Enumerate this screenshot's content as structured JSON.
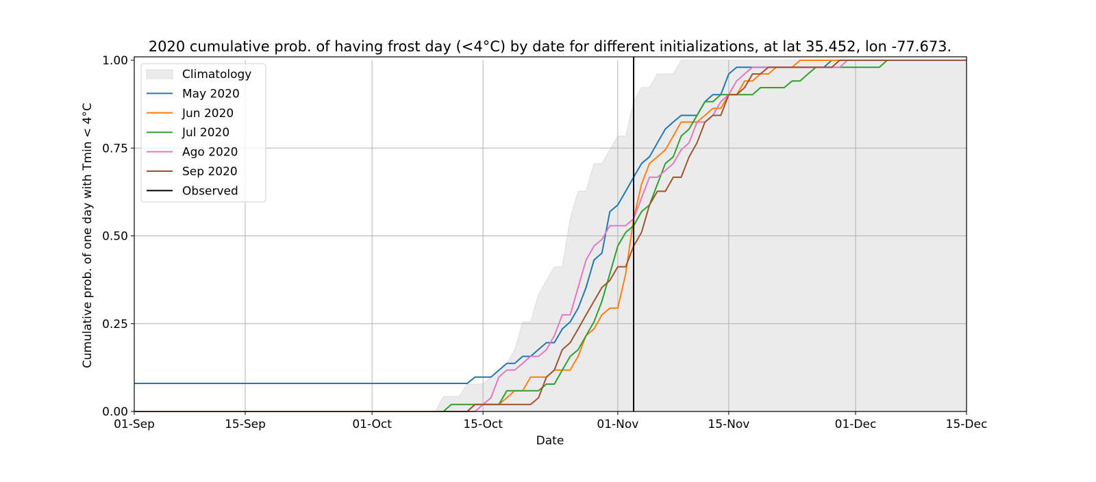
{
  "chart_data": {
    "type": "line",
    "title": "2020 cumulative prob. of having frost day (<4°C) by date for different initializations, at lat 35.452, lon -77.673.",
    "xlabel": "Date",
    "ylabel": "Cumulative prob. of one day with Tmin < 4°C",
    "xlim": [
      "2020-09-01",
      "2020-12-15"
    ],
    "ylim": [
      0,
      1
    ],
    "x_ticks": [
      {
        "date": "2020-09-01",
        "label": "01-Sep"
      },
      {
        "date": "2020-09-15",
        "label": "15-Sep"
      },
      {
        "date": "2020-10-01",
        "label": "01-Oct"
      },
      {
        "date": "2020-10-15",
        "label": "15-Oct"
      },
      {
        "date": "2020-11-01",
        "label": "01-Nov"
      },
      {
        "date": "2020-11-15",
        "label": "15-Nov"
      },
      {
        "date": "2020-12-01",
        "label": "01-Dec"
      },
      {
        "date": "2020-12-15",
        "label": "15-Dec"
      }
    ],
    "y_ticks": [
      {
        "value": 0,
        "label": "0.00"
      },
      {
        "value": 0.25,
        "label": "0.25"
      },
      {
        "value": 0.5,
        "label": "0.50"
      },
      {
        "value": 0.75,
        "label": "0.75"
      },
      {
        "value": 1,
        "label": "1.00"
      }
    ],
    "grid": true,
    "legend_placement": "top-left",
    "climatology": {
      "name": "Climatology",
      "color": "#ebebeb",
      "points": [
        [
          "2020-09-01",
          0
        ],
        [
          "2020-10-09",
          0
        ],
        [
          "2020-10-10",
          0.043
        ],
        [
          "2020-10-12",
          0.043
        ],
        [
          "2020-10-13",
          0.078
        ],
        [
          "2020-10-15",
          0.078
        ],
        [
          "2020-10-16",
          0.098
        ],
        [
          "2020-10-18",
          0.137
        ],
        [
          "2020-10-19",
          0.176
        ],
        [
          "2020-10-20",
          0.255
        ],
        [
          "2020-10-21",
          0.255
        ],
        [
          "2020-10-22",
          0.333
        ],
        [
          "2020-10-23",
          0.373
        ],
        [
          "2020-10-24",
          0.412
        ],
        [
          "2020-10-25",
          0.412
        ],
        [
          "2020-10-26",
          0.549
        ],
        [
          "2020-10-27",
          0.627
        ],
        [
          "2020-10-28",
          0.627
        ],
        [
          "2020-10-29",
          0.706
        ],
        [
          "2020-10-30",
          0.706
        ],
        [
          "2020-10-31",
          0.745
        ],
        [
          "2020-11-01",
          0.784
        ],
        [
          "2020-11-02",
          0.784
        ],
        [
          "2020-11-03",
          0.882
        ],
        [
          "2020-11-04",
          0.922
        ],
        [
          "2020-11-05",
          0.922
        ],
        [
          "2020-11-06",
          0.961
        ],
        [
          "2020-11-08",
          0.961
        ],
        [
          "2020-11-09",
          1
        ],
        [
          "2020-12-15",
          1
        ]
      ]
    },
    "series": [
      {
        "name": "May 2020",
        "color": "#1f77b4",
        "points": [
          [
            "2020-09-01",
            0.08
          ],
          [
            "2020-10-13",
            0.08
          ],
          [
            "2020-10-14",
            0.098
          ],
          [
            "2020-10-16",
            0.098
          ],
          [
            "2020-10-18",
            0.137
          ],
          [
            "2020-10-19",
            0.137
          ],
          [
            "2020-10-20",
            0.157
          ],
          [
            "2020-10-21",
            0.157
          ],
          [
            "2020-10-23",
            0.196
          ],
          [
            "2020-10-24",
            0.196
          ],
          [
            "2020-10-25",
            0.235
          ],
          [
            "2020-10-26",
            0.255
          ],
          [
            "2020-10-27",
            0.294
          ],
          [
            "2020-10-28",
            0.353
          ],
          [
            "2020-10-29",
            0.431
          ],
          [
            "2020-10-30",
            0.451
          ],
          [
            "2020-10-31",
            0.569
          ],
          [
            "2020-11-01",
            0.588
          ],
          [
            "2020-11-02",
            0.627
          ],
          [
            "2020-11-03",
            0.667
          ],
          [
            "2020-11-04",
            0.706
          ],
          [
            "2020-11-05",
            0.725
          ],
          [
            "2020-11-06",
            0.765
          ],
          [
            "2020-11-07",
            0.804
          ],
          [
            "2020-11-08",
            0.824
          ],
          [
            "2020-11-09",
            0.843
          ],
          [
            "2020-11-11",
            0.843
          ],
          [
            "2020-11-12",
            0.882
          ],
          [
            "2020-11-13",
            0.902
          ],
          [
            "2020-11-14",
            0.902
          ],
          [
            "2020-11-15",
            0.961
          ],
          [
            "2020-11-16",
            0.98
          ],
          [
            "2020-11-27",
            0.98
          ],
          [
            "2020-11-28",
            1
          ],
          [
            "2020-12-15",
            1
          ]
        ]
      },
      {
        "name": "Jun 2020",
        "color": "#ff7f0e",
        "points": [
          [
            "2020-09-01",
            0
          ],
          [
            "2020-10-13",
            0
          ],
          [
            "2020-10-14",
            0.02
          ],
          [
            "2020-10-17",
            0.02
          ],
          [
            "2020-10-18",
            0.039
          ],
          [
            "2020-10-19",
            0.059
          ],
          [
            "2020-10-20",
            0.059
          ],
          [
            "2020-10-21",
            0.098
          ],
          [
            "2020-10-23",
            0.098
          ],
          [
            "2020-10-24",
            0.118
          ],
          [
            "2020-10-26",
            0.118
          ],
          [
            "2020-10-27",
            0.157
          ],
          [
            "2020-10-28",
            0.216
          ],
          [
            "2020-10-29",
            0.235
          ],
          [
            "2020-10-30",
            0.275
          ],
          [
            "2020-10-31",
            0.294
          ],
          [
            "2020-11-01",
            0.294
          ],
          [
            "2020-11-02",
            0.392
          ],
          [
            "2020-11-03",
            0.549
          ],
          [
            "2020-11-04",
            0.647
          ],
          [
            "2020-11-05",
            0.706
          ],
          [
            "2020-11-06",
            0.725
          ],
          [
            "2020-11-07",
            0.745
          ],
          [
            "2020-11-08",
            0.784
          ],
          [
            "2020-11-09",
            0.824
          ],
          [
            "2020-11-11",
            0.824
          ],
          [
            "2020-11-12",
            0.843
          ],
          [
            "2020-11-13",
            0.863
          ],
          [
            "2020-11-14",
            0.863
          ],
          [
            "2020-11-15",
            0.902
          ],
          [
            "2020-11-16",
            0.902
          ],
          [
            "2020-11-17",
            0.941
          ],
          [
            "2020-11-18",
            0.941
          ],
          [
            "2020-11-19",
            0.961
          ],
          [
            "2020-11-20",
            0.961
          ],
          [
            "2020-11-21",
            0.98
          ],
          [
            "2020-11-23",
            0.98
          ],
          [
            "2020-11-24",
            1
          ],
          [
            "2020-12-15",
            1
          ]
        ]
      },
      {
        "name": "Jul 2020",
        "color": "#2ca02c",
        "points": [
          [
            "2020-09-01",
            0
          ],
          [
            "2020-10-10",
            0
          ],
          [
            "2020-10-11",
            0.02
          ],
          [
            "2020-10-17",
            0.02
          ],
          [
            "2020-10-18",
            0.059
          ],
          [
            "2020-10-22",
            0.059
          ],
          [
            "2020-10-23",
            0.078
          ],
          [
            "2020-10-24",
            0.078
          ],
          [
            "2020-10-25",
            0.118
          ],
          [
            "2020-10-26",
            0.157
          ],
          [
            "2020-10-27",
            0.176
          ],
          [
            "2020-10-28",
            0.216
          ],
          [
            "2020-10-29",
            0.255
          ],
          [
            "2020-10-30",
            0.314
          ],
          [
            "2020-10-31",
            0.392
          ],
          [
            "2020-11-01",
            0.471
          ],
          [
            "2020-11-02",
            0.51
          ],
          [
            "2020-11-03",
            0.529
          ],
          [
            "2020-11-04",
            0.569
          ],
          [
            "2020-11-05",
            0.588
          ],
          [
            "2020-11-06",
            0.647
          ],
          [
            "2020-11-07",
            0.706
          ],
          [
            "2020-11-08",
            0.725
          ],
          [
            "2020-11-09",
            0.784
          ],
          [
            "2020-11-10",
            0.804
          ],
          [
            "2020-11-11",
            0.843
          ],
          [
            "2020-11-12",
            0.882
          ],
          [
            "2020-11-13",
            0.882
          ],
          [
            "2020-11-14",
            0.902
          ],
          [
            "2020-11-18",
            0.902
          ],
          [
            "2020-11-19",
            0.922
          ],
          [
            "2020-11-22",
            0.922
          ],
          [
            "2020-11-23",
            0.941
          ],
          [
            "2020-11-24",
            0.941
          ],
          [
            "2020-11-25",
            0.961
          ],
          [
            "2020-11-26",
            0.98
          ],
          [
            "2020-12-04",
            0.98
          ],
          [
            "2020-12-05",
            1
          ],
          [
            "2020-12-15",
            1
          ]
        ]
      },
      {
        "name": "Ago 2020",
        "color": "#e377c2",
        "points": [
          [
            "2020-09-01",
            0
          ],
          [
            "2020-10-14",
            0
          ],
          [
            "2020-10-15",
            0.02
          ],
          [
            "2020-10-16",
            0.039
          ],
          [
            "2020-10-17",
            0.098
          ],
          [
            "2020-10-18",
            0.118
          ],
          [
            "2020-10-19",
            0.118
          ],
          [
            "2020-10-20",
            0.137
          ],
          [
            "2020-10-21",
            0.157
          ],
          [
            "2020-10-22",
            0.157
          ],
          [
            "2020-10-23",
            0.176
          ],
          [
            "2020-10-24",
            0.216
          ],
          [
            "2020-10-25",
            0.275
          ],
          [
            "2020-10-26",
            0.275
          ],
          [
            "2020-10-27",
            0.353
          ],
          [
            "2020-10-28",
            0.431
          ],
          [
            "2020-10-29",
            0.471
          ],
          [
            "2020-10-30",
            0.49
          ],
          [
            "2020-10-31",
            0.529
          ],
          [
            "2020-11-02",
            0.529
          ],
          [
            "2020-11-03",
            0.549
          ],
          [
            "2020-11-04",
            0.608
          ],
          [
            "2020-11-05",
            0.667
          ],
          [
            "2020-11-06",
            0.667
          ],
          [
            "2020-11-07",
            0.686
          ],
          [
            "2020-11-08",
            0.706
          ],
          [
            "2020-11-09",
            0.745
          ],
          [
            "2020-11-10",
            0.765
          ],
          [
            "2020-11-11",
            0.824
          ],
          [
            "2020-11-12",
            0.824
          ],
          [
            "2020-11-13",
            0.843
          ],
          [
            "2020-11-14",
            0.882
          ],
          [
            "2020-11-15",
            0.902
          ],
          [
            "2020-11-16",
            0.941
          ],
          [
            "2020-11-17",
            0.961
          ],
          [
            "2020-11-18",
            0.98
          ],
          [
            "2020-11-29",
            0.98
          ],
          [
            "2020-11-30",
            1
          ],
          [
            "2020-12-15",
            1
          ]
        ]
      },
      {
        "name": "Sep 2020",
        "color": "#a0522d",
        "points": [
          [
            "2020-09-01",
            0
          ],
          [
            "2020-10-13",
            0
          ],
          [
            "2020-10-14",
            0.02
          ],
          [
            "2020-10-21",
            0.02
          ],
          [
            "2020-10-22",
            0.039
          ],
          [
            "2020-10-23",
            0.098
          ],
          [
            "2020-10-24",
            0.118
          ],
          [
            "2020-10-25",
            0.176
          ],
          [
            "2020-10-26",
            0.196
          ],
          [
            "2020-10-27",
            0.235
          ],
          [
            "2020-10-28",
            0.275
          ],
          [
            "2020-10-29",
            0.314
          ],
          [
            "2020-10-30",
            0.353
          ],
          [
            "2020-10-31",
            0.373
          ],
          [
            "2020-11-01",
            0.412
          ],
          [
            "2020-11-02",
            0.412
          ],
          [
            "2020-11-03",
            0.471
          ],
          [
            "2020-11-04",
            0.51
          ],
          [
            "2020-11-05",
            0.588
          ],
          [
            "2020-11-06",
            0.627
          ],
          [
            "2020-11-07",
            0.627
          ],
          [
            "2020-11-08",
            0.667
          ],
          [
            "2020-11-09",
            0.667
          ],
          [
            "2020-11-10",
            0.725
          ],
          [
            "2020-11-11",
            0.765
          ],
          [
            "2020-11-12",
            0.824
          ],
          [
            "2020-11-13",
            0.843
          ],
          [
            "2020-11-14",
            0.843
          ],
          [
            "2020-11-15",
            0.902
          ],
          [
            "2020-11-16",
            0.902
          ],
          [
            "2020-11-17",
            0.922
          ],
          [
            "2020-11-18",
            0.961
          ],
          [
            "2020-11-19",
            0.961
          ],
          [
            "2020-11-20",
            0.98
          ],
          [
            "2020-11-28",
            0.98
          ],
          [
            "2020-11-29",
            1
          ],
          [
            "2020-12-15",
            1
          ]
        ]
      }
    ],
    "observed": {
      "name": "Observed",
      "color": "#000000",
      "date": "2020-11-03"
    }
  }
}
